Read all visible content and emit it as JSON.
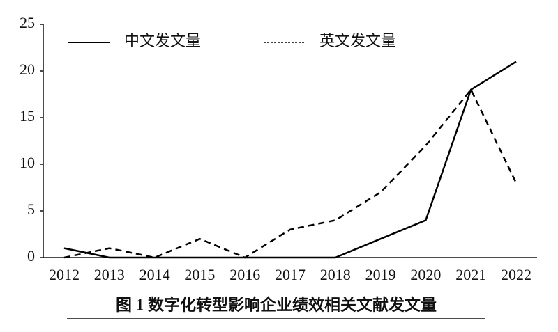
{
  "chart_data": {
    "type": "line",
    "title": "图 1  数字化转型影响企业绩效相关文献发文量",
    "categories": [
      "2012",
      "2013",
      "2014",
      "2015",
      "2016",
      "2017",
      "2018",
      "2019",
      "2020",
      "2021",
      "2022"
    ],
    "series": [
      {
        "name": "中文发文量",
        "color": "#000000",
        "linestyle": "solid",
        "values": [
          1,
          0,
          0,
          0,
          0,
          0,
          0,
          2,
          4,
          18,
          21
        ]
      },
      {
        "name": "英文发文量",
        "color": "#000000",
        "linestyle": "dashed",
        "values": [
          0,
          1,
          0,
          2,
          0,
          3,
          4,
          7,
          12,
          18,
          8
        ]
      }
    ],
    "ylim": [
      0,
      25
    ],
    "yticks": [
      0,
      5,
      10,
      15,
      20,
      25
    ],
    "grid": false
  }
}
